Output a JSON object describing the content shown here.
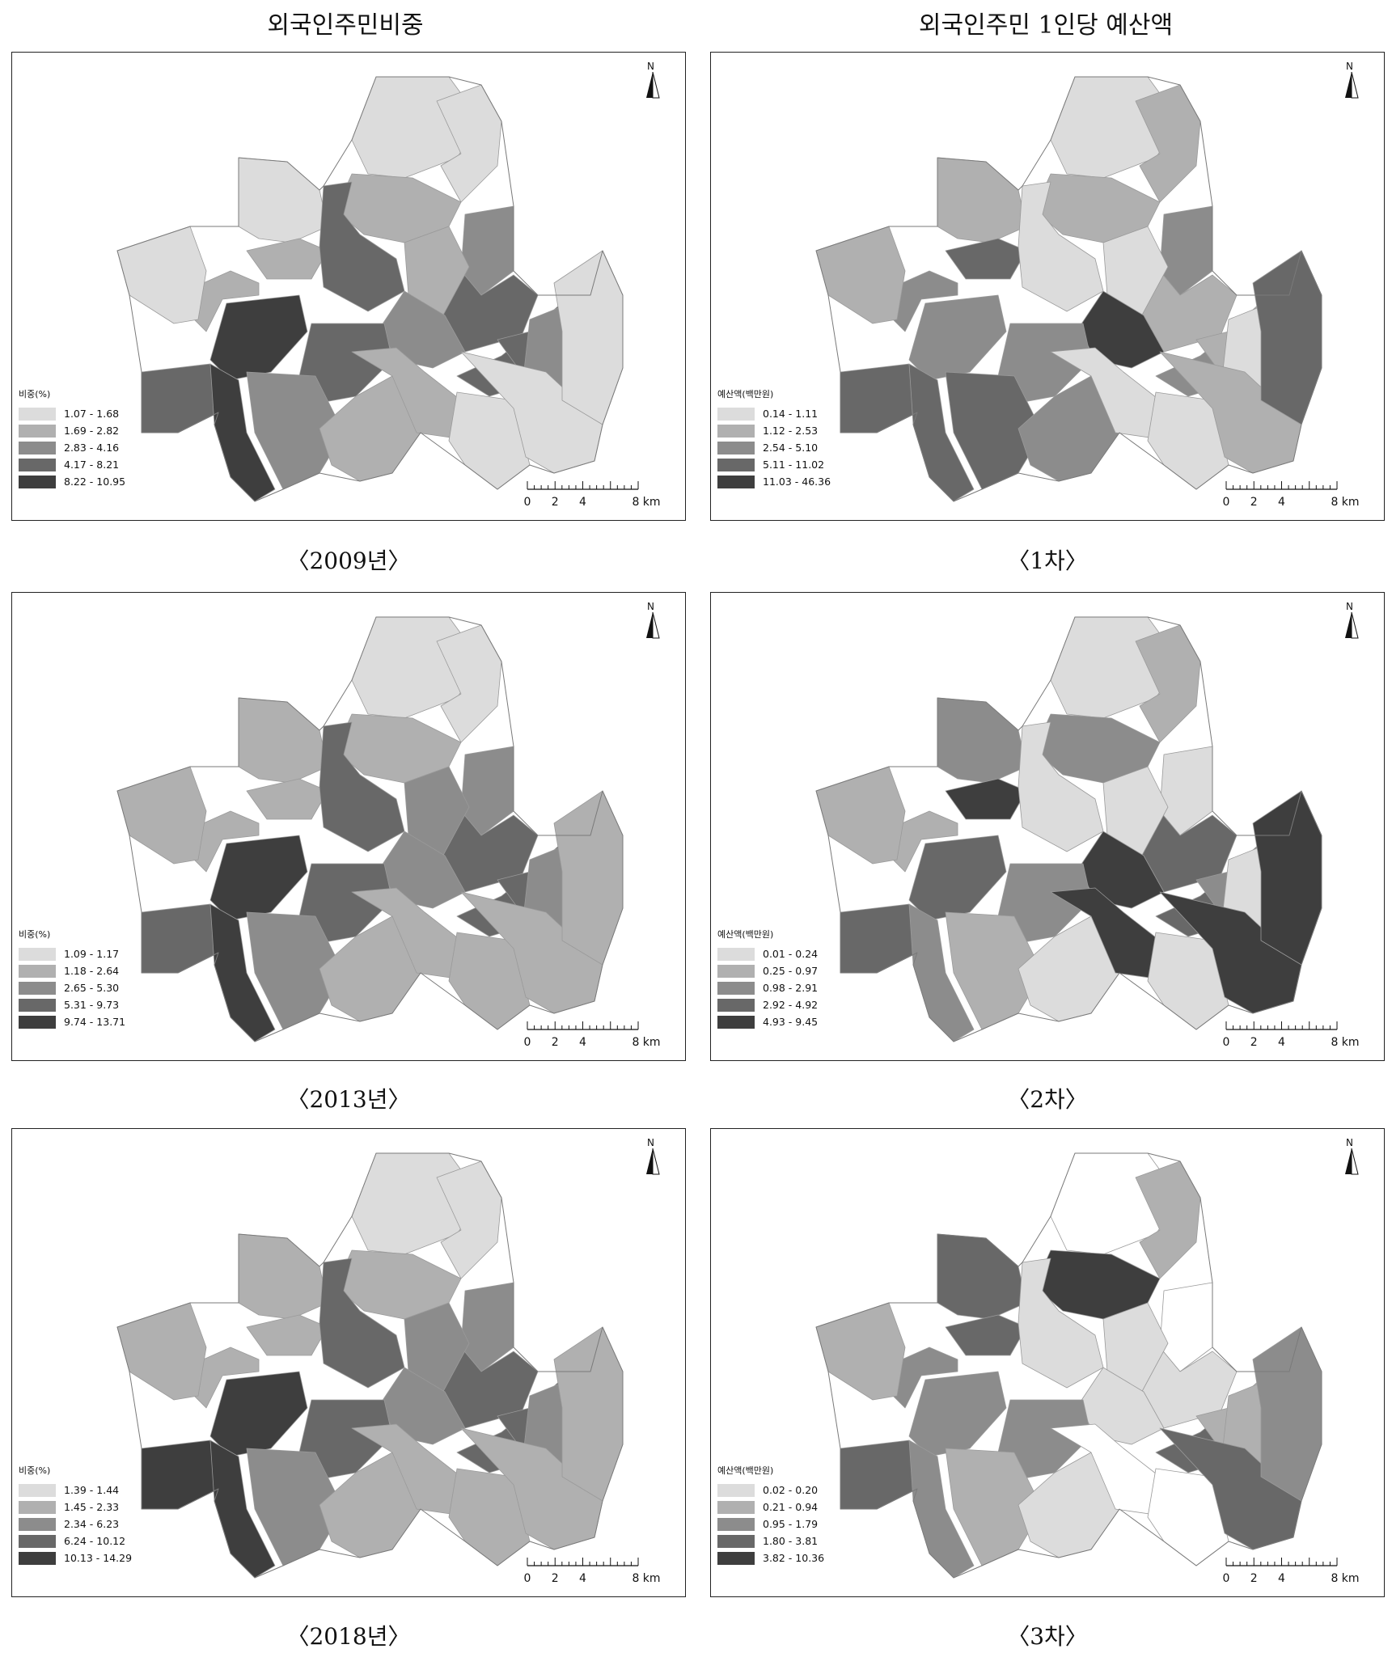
{
  "column_titles": {
    "left": "외국인주민비중",
    "right": "외국인주민 1인당 예산액"
  },
  "palette": [
    "#dcdcdc",
    "#b0b0b0",
    "#8c8c8c",
    "#686868",
    "#3e3e3e"
  ],
  "north_label": "N",
  "scale": {
    "ticks": [
      "0",
      "2",
      "4",
      "8 km"
    ],
    "values_km": [
      0,
      2,
      4,
      8
    ]
  },
  "panels": [
    {
      "id": "p2009",
      "caption": "〈2009년〉",
      "legend_title": "비중(%)",
      "legend": [
        "1.07 - 1.68",
        "1.69 - 2.82",
        "2.83 - 4.16",
        "4.17 - 8.21",
        "8.22 - 10.95"
      ],
      "classes": [
        0,
        0,
        0,
        1,
        1,
        3,
        2,
        3,
        1,
        2,
        3,
        3,
        2,
        4,
        3,
        1,
        0,
        3,
        4,
        2,
        1,
        1,
        0,
        0,
        0
      ]
    },
    {
      "id": "p1cha",
      "caption": "〈1차〉",
      "legend_title": "예산액(백만원)",
      "legend": [
        "0.14 - 1.11",
        "1.12 - 2.53",
        "2.54 - 5.10",
        "5.11 - 11.02",
        "11.03 - 46.36"
      ],
      "classes": [
        0,
        1,
        1,
        3,
        1,
        0,
        2,
        1,
        0,
        4,
        2,
        1,
        0,
        2,
        2,
        2,
        1,
        3,
        3,
        3,
        2,
        0,
        0,
        1,
        3
      ]
    },
    {
      "id": "p2013",
      "caption": "〈2013년〉",
      "legend_title": "비중(%)",
      "legend": [
        "1.09 - 1.17",
        "1.18 - 2.64",
        "2.65 - 5.30",
        "5.31 - 9.73",
        "9.74 - 13.71"
      ],
      "classes": [
        0,
        0,
        1,
        1,
        1,
        3,
        2,
        3,
        2,
        2,
        3,
        3,
        2,
        4,
        3,
        1,
        1,
        3,
        4,
        2,
        1,
        1,
        1,
        1,
        1
      ]
    },
    {
      "id": "p2cha",
      "caption": "〈2차〉",
      "legend_title": "예산액(백만원)",
      "legend": [
        "0.01 - 0.24",
        "0.25 - 0.97",
        "0.98 - 2.91",
        "2.92 - 4.92",
        "4.93 - 9.45"
      ],
      "classes": [
        0,
        1,
        2,
        4,
        2,
        0,
        0,
        3,
        0,
        4,
        3,
        2,
        0,
        3,
        2,
        1,
        1,
        3,
        2,
        1,
        0,
        4,
        0,
        4,
        4
      ]
    },
    {
      "id": "p2018",
      "caption": "〈2018년〉",
      "legend_title": "비중(%)",
      "legend": [
        "1.39 - 1.44",
        "1.45 - 2.33",
        "2.34 - 6.23",
        "6.24 - 10.12",
        "10.13 - 14.29"
      ],
      "classes": [
        0,
        0,
        1,
        1,
        1,
        3,
        2,
        3,
        2,
        2,
        3,
        3,
        2,
        4,
        3,
        1,
        1,
        4,
        4,
        2,
        1,
        1,
        1,
        1,
        1
      ]
    },
    {
      "id": "p3cha",
      "caption": "〈3차〉",
      "legend_title": "예산액(백만원)",
      "legend": [
        "0.02 - 0.20",
        "0.21 - 0.94",
        "0.95 - 1.79",
        "1.80 - 3.81",
        "3.82 - 10.36"
      ],
      "classes": [
        -1,
        1,
        3,
        3,
        4,
        0,
        -1,
        0,
        0,
        0,
        3,
        1,
        1,
        2,
        2,
        2,
        1,
        3,
        2,
        1,
        0,
        -1,
        -1,
        3,
        2
      ]
    }
  ]
}
